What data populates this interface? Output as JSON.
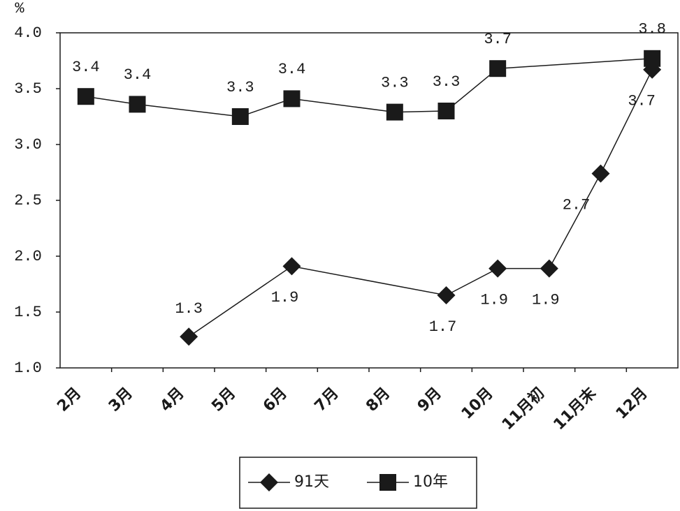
{
  "chart_data": {
    "type": "line",
    "y_label": "%",
    "categories": [
      "2月",
      "3月",
      "4月",
      "5月",
      "6月",
      "7月",
      "8月",
      "9月",
      "10月",
      "11月初",
      "11月末",
      "12月"
    ],
    "series": [
      {
        "name": "91天",
        "color": "#1a1a1a",
        "marker": "diamond",
        "values": [
          null,
          null,
          1.28,
          null,
          1.91,
          null,
          null,
          1.65,
          1.89,
          1.89,
          2.74,
          3.67
        ],
        "value_labels": [
          null,
          null,
          "1.3",
          null,
          "1.9",
          null,
          null,
          "1.7",
          "1.9",
          "1.9",
          "2.7",
          "3.7"
        ]
      },
      {
        "name": "10年",
        "color": "#1a1a1a",
        "marker": "square",
        "values": [
          3.43,
          3.36,
          null,
          3.25,
          3.41,
          null,
          3.29,
          3.3,
          3.68,
          null,
          null,
          3.77
        ],
        "value_labels": [
          "3.4",
          "3.4",
          null,
          "3.3",
          "3.4",
          null,
          "3.3",
          "3.3",
          "3.7",
          null,
          null,
          "3.8"
        ]
      }
    ],
    "span_gaps": true,
    "ylim": [
      1,
      4
    ],
    "yticks": [
      {
        "value": 1,
        "label": "1.0"
      },
      1.5,
      {
        "value": 2,
        "label": "2.0"
      },
      2.5,
      {
        "value": 3,
        "label": "3.0"
      },
      3.5,
      {
        "value": 4,
        "label": "4.0"
      }
    ],
    "legend": "bottom"
  }
}
